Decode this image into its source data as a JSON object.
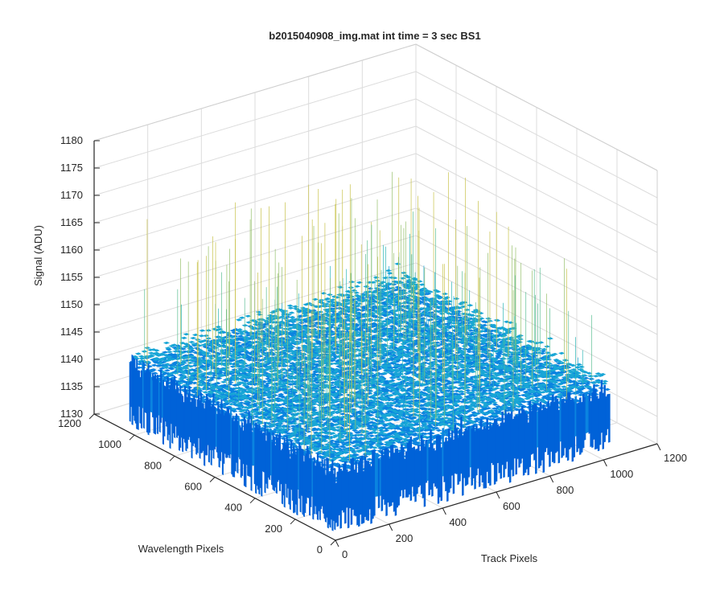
{
  "chart_data": {
    "type": "surface",
    "title": "b2015040908_img.mat int time = 3 sec   BS1",
    "xlabel": "Track Pixels",
    "ylabel": "Wavelength Pixels",
    "zlabel": "Signal (ADU)",
    "xlim": [
      0,
      1200
    ],
    "ylim": [
      0,
      1200
    ],
    "zlim": [
      1130,
      1180
    ],
    "x_ticks": [
      "0",
      "200",
      "400",
      "600",
      "800",
      "1000",
      "1200"
    ],
    "y_ticks": [
      "0",
      "200",
      "400",
      "600",
      "800",
      "1000",
      "1200"
    ],
    "z_ticks": [
      "1130",
      "1135",
      "1140",
      "1145",
      "1150",
      "1155",
      "1160",
      "1165",
      "1170",
      "1175",
      "1180"
    ],
    "data_extent": {
      "x": [
        0,
        1024
      ],
      "y": [
        0,
        1024
      ]
    },
    "mean_signal": 1143,
    "noise_range": [
      1132,
      1172
    ],
    "grid": true,
    "colormap": [
      "#0062d8",
      "#0b84e0",
      "#19a6d6",
      "#2cb6b6",
      "#5cbf94",
      "#96c06c",
      "#c8c24a"
    ]
  }
}
